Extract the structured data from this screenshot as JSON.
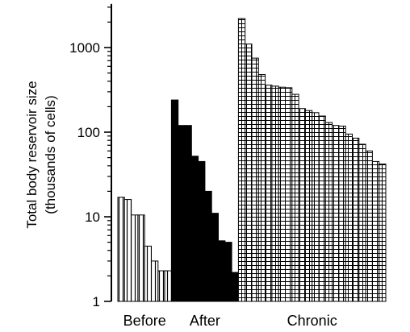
{
  "chart_data": {
    "type": "bar",
    "title": "",
    "xlabel": "",
    "ylabel_line1": "Total body reservoir size",
    "ylabel_line2": "(thousands of cells)",
    "y_scale": "log",
    "ylim": [
      1,
      3000
    ],
    "y_ticks": [
      {
        "value": 1,
        "label": "1"
      },
      {
        "value": 10,
        "label": "10"
      },
      {
        "value": 100,
        "label": "100"
      },
      {
        "value": 1000,
        "label": "1000"
      }
    ],
    "grid": false,
    "legend": "none",
    "groups": [
      {
        "name": "Before",
        "fill": "vertical-stripes",
        "values": [
          17,
          16,
          10.5,
          10.5,
          4.5,
          3,
          2.3,
          2.3
        ]
      },
      {
        "name": "After",
        "fill": "solid-black",
        "values": [
          240,
          120,
          120,
          52,
          45,
          20,
          11,
          5.2,
          5,
          2.2
        ]
      },
      {
        "name": "Chronic",
        "fill": "brick-grid",
        "values": [
          2200,
          1100,
          750,
          480,
          360,
          350,
          340,
          335,
          280,
          190,
          180,
          170,
          155,
          130,
          120,
          118,
          95,
          85,
          72,
          60,
          45,
          42
        ]
      }
    ]
  }
}
